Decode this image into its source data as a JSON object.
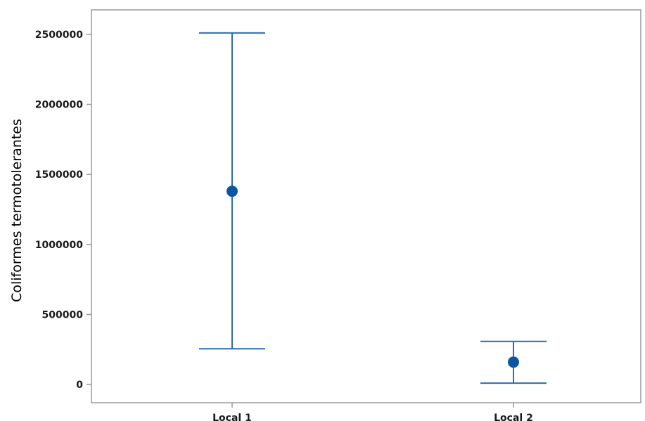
{
  "chart_data": {
    "type": "errorbar",
    "ylabel": "Coliformes termotolerantes",
    "xlabel": "",
    "categories": [
      "Local 1",
      "Local 2"
    ],
    "ylim": [
      -130000,
      2675000
    ],
    "yticks": [
      0,
      500000,
      1000000,
      1500000,
      2000000,
      2500000
    ],
    "ytick_labels": [
      "0",
      "500000",
      "1000000",
      "1500000",
      "2000000",
      "2500000"
    ],
    "series": [
      {
        "points": [
          {
            "category": "Local 1",
            "mean": 1380000,
            "lower": 255000,
            "upper": 2510000
          },
          {
            "category": "Local 2",
            "mean": 160000,
            "lower": 10000,
            "upper": 308000
          }
        ]
      }
    ],
    "grid": false,
    "colors": {
      "marker": "#0b55a3",
      "errorbar": "#2a6db3",
      "frame": "#9a9a9a"
    }
  }
}
